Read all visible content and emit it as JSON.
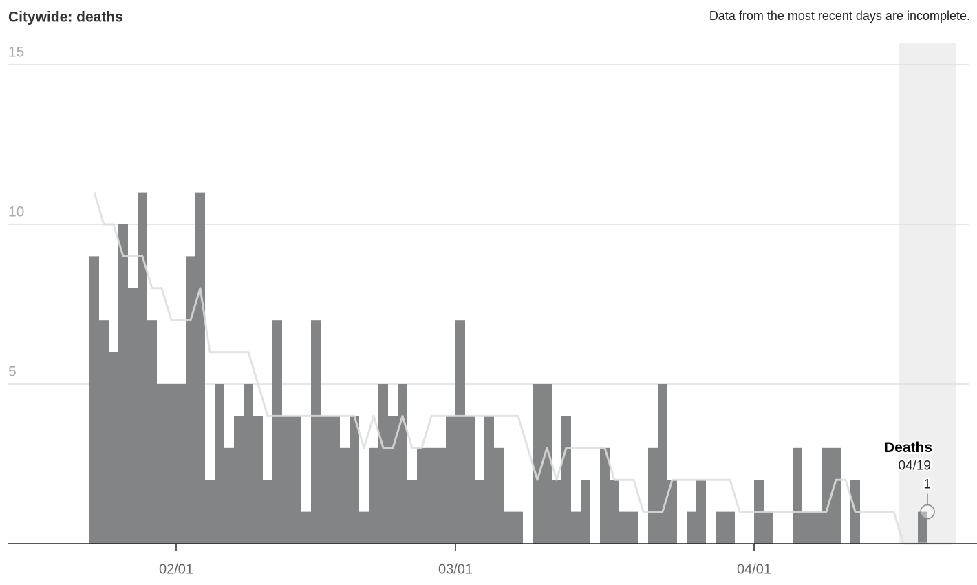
{
  "chart_data": {
    "type": "bar",
    "title": "Citywide: deaths",
    "note": "Data from the most recent days are incomplete.",
    "incomplete_days": 6,
    "categories": [
      null,
      null,
      null,
      null,
      null,
      null,
      null,
      null,
      "02/01",
      null,
      null,
      null,
      null,
      null,
      null,
      null,
      null,
      null,
      null,
      null,
      null,
      null,
      null,
      null,
      null,
      null,
      null,
      null,
      null,
      null,
      null,
      null,
      null,
      null,
      null,
      null,
      null,
      "03/01",
      null,
      null,
      null,
      null,
      null,
      null,
      null,
      null,
      null,
      null,
      null,
      null,
      null,
      null,
      null,
      null,
      null,
      null,
      null,
      null,
      null,
      null,
      null,
      null,
      null,
      null,
      null,
      null,
      null,
      null,
      "04/01",
      null,
      null,
      null,
      null,
      null,
      null,
      null,
      null,
      null,
      null,
      null,
      null,
      null,
      null,
      null,
      null,
      null,
      "04/19",
      null,
      null,
      null
    ],
    "xticks": [
      "02/01",
      "03/01",
      "04/01"
    ],
    "series": [
      {
        "name": "Deaths",
        "color": "#838485",
        "values": [
          9,
          7,
          6,
          10,
          8,
          11,
          7,
          5,
          5,
          5,
          9,
          11,
          2,
          5,
          3,
          4,
          5,
          4,
          2,
          7,
          4,
          4,
          1,
          7,
          4,
          4,
          3,
          4,
          1,
          3,
          5,
          4,
          5,
          2,
          3,
          3,
          3,
          4,
          7,
          4,
          2,
          4,
          3,
          1,
          1,
          0,
          5,
          5,
          2,
          4,
          1,
          2,
          0,
          3,
          2,
          1,
          1,
          0,
          3,
          5,
          2,
          0,
          1,
          2,
          0,
          1,
          1,
          0,
          0,
          2,
          1,
          0,
          0,
          3,
          1,
          1,
          3,
          3,
          0,
          2,
          0,
          0,
          0,
          0,
          0,
          0,
          1,
          0,
          0,
          0
        ]
      },
      {
        "color": "#dddddd",
        "values": [
          11,
          10,
          10,
          9,
          9,
          9,
          8,
          8,
          7,
          7,
          7,
          8,
          6,
          6,
          6,
          6,
          6,
          5,
          4,
          4,
          4,
          4,
          4,
          4,
          4,
          4,
          4,
          4,
          3,
          4,
          3,
          3,
          4,
          3,
          3,
          4,
          4,
          4,
          4,
          4,
          4,
          4,
          4,
          4,
          4,
          3,
          2,
          3,
          2,
          3,
          3,
          3,
          3,
          3,
          2,
          2,
          2,
          1,
          1,
          1,
          2,
          2,
          2,
          2,
          2,
          2,
          2,
          1,
          1,
          1,
          1,
          1,
          1,
          1,
          1,
          1,
          1,
          2,
          2,
          1,
          1,
          1,
          1,
          1,
          0,
          0,
          0,
          0,
          0,
          0
        ]
      }
    ],
    "ylim": [
      0,
      15
    ],
    "yticks": [
      5,
      10,
      15
    ],
    "grid": true,
    "tooltip": {
      "title": "Deaths",
      "date": "04/19",
      "value": 1
    }
  }
}
